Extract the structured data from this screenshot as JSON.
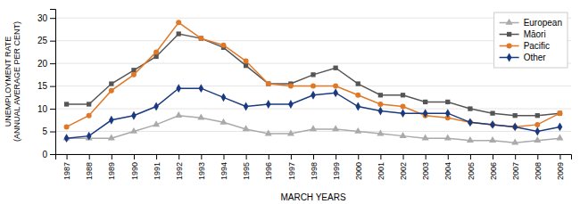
{
  "chart_data": {
    "type": "line",
    "xlabel": "MARCH YEARS",
    "ylabel": "UNEMPLOYMENT RATE\n(ANNUAL AVERAGE PER CENT)",
    "x": [
      1987,
      1988,
      1989,
      1990,
      1991,
      1992,
      1993,
      1994,
      1995,
      1996,
      1997,
      1998,
      1999,
      2000,
      2001,
      2002,
      2003,
      2004,
      2005,
      2006,
      2007,
      2008,
      2009
    ],
    "series": [
      {
        "name": "European",
        "color": "#aaaaaa",
        "marker": "triangle",
        "values": [
          3.5,
          3.5,
          3.5,
          5.0,
          6.5,
          8.5,
          8.0,
          7.0,
          5.5,
          4.5,
          4.5,
          5.5,
          5.5,
          5.0,
          4.5,
          4.0,
          3.5,
          3.5,
          3.0,
          3.0,
          2.5,
          3.0,
          3.5
        ]
      },
      {
        "name": "Māori",
        "color": "#555555",
        "marker": "square",
        "values": [
          11.0,
          11.0,
          15.5,
          18.5,
          21.5,
          26.5,
          25.5,
          23.5,
          19.5,
          15.5,
          15.5,
          17.5,
          19.0,
          15.5,
          13.0,
          13.0,
          11.5,
          11.5,
          10.0,
          9.0,
          8.5,
          8.5,
          9.0
        ]
      },
      {
        "name": "Pacific",
        "color": "#e07828",
        "marker": "circle",
        "values": [
          6.0,
          8.5,
          14.0,
          17.5,
          22.5,
          29.0,
          25.5,
          24.0,
          20.5,
          15.5,
          15.0,
          15.0,
          15.0,
          13.0,
          11.0,
          10.5,
          8.5,
          8.0,
          7.0,
          6.5,
          6.0,
          6.5,
          9.0
        ]
      },
      {
        "name": "Other",
        "color": "#1a3a80",
        "marker": "diamond",
        "values": [
          3.5,
          4.0,
          7.5,
          8.5,
          10.5,
          14.5,
          14.5,
          12.5,
          10.5,
          11.0,
          11.0,
          13.0,
          13.5,
          10.5,
          9.5,
          9.0,
          9.0,
          9.0,
          7.0,
          6.5,
          6.0,
          5.0,
          6.0
        ]
      }
    ],
    "xlim": [
      1986.5,
      2009.5
    ],
    "xticks": [
      1987,
      1988,
      1989,
      1990,
      1991,
      1992,
      1993,
      1994,
      1995,
      1996,
      1997,
      1998,
      1999,
      2000,
      2001,
      2002,
      2003,
      2004,
      2005,
      2006,
      2007,
      2008,
      2009
    ],
    "ylim": [
      0,
      32
    ],
    "yticks": [
      0,
      5,
      10,
      15,
      20,
      25,
      30
    ],
    "grid": true,
    "legend": "upper right"
  }
}
